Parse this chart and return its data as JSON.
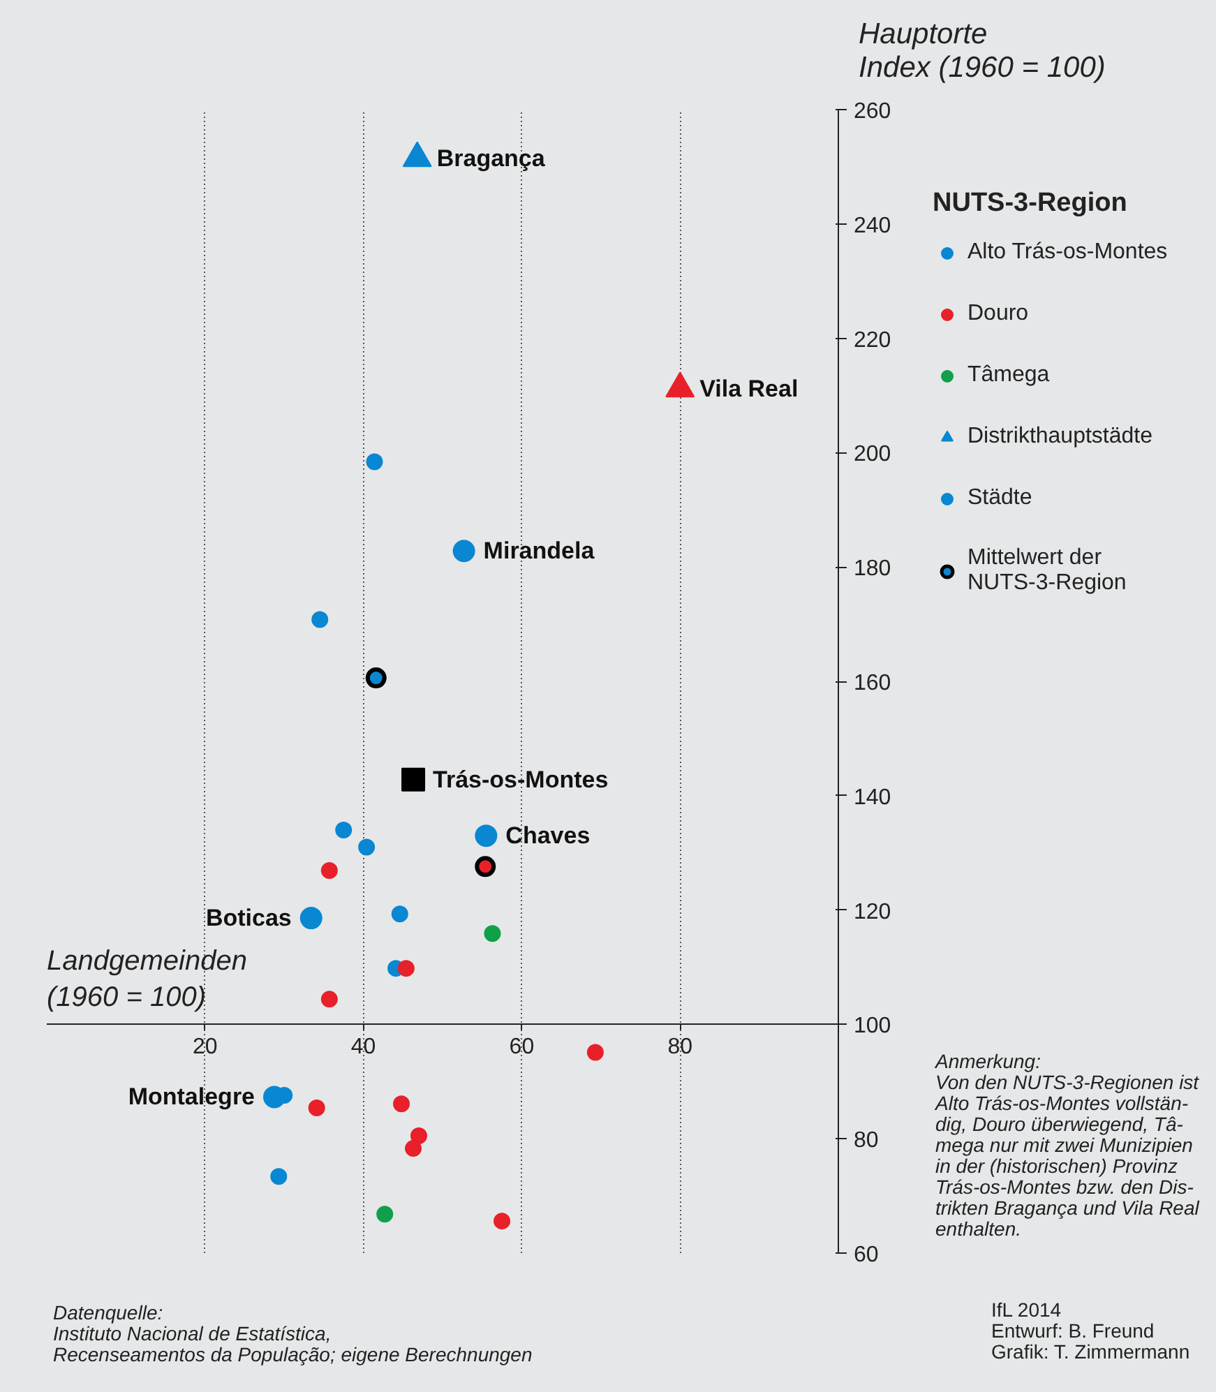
{
  "chart_data": {
    "type": "scatter",
    "xlabel": "Landgemeinden\n(1960 = 100)",
    "ylabel": "Hauptorte\nIndex (1960 = 100)",
    "legend_title": "NUTS-3-Region",
    "xlim": [
      0,
      100
    ],
    "ylim": [
      60,
      260
    ],
    "xticks": [
      20,
      40,
      60,
      80
    ],
    "yticks": [
      60,
      80,
      100,
      120,
      140,
      160,
      180,
      200,
      220,
      240,
      260
    ],
    "grid": "x",
    "legend": "right",
    "marker": "circle",
    "series": [
      {
        "name": "Alto Trás-os-Montes",
        "color": "#0a87d2",
        "x": [
          41.4,
          34.5,
          37.5,
          40.4,
          44.6,
          44.1,
          30.0,
          29.3
        ],
        "values": [
          198.4,
          170.8,
          134.0,
          131.0,
          119.3,
          109.8,
          87.6,
          73.4
        ]
      },
      {
        "name": "Douro",
        "color": "#e8202a",
        "x": [
          35.7,
          45.4,
          35.7,
          69.3,
          34.1,
          44.8,
          47.0,
          46.3,
          57.5
        ],
        "values": [
          126.9,
          109.8,
          104.4,
          95.1,
          85.4,
          86.1,
          80.5,
          78.3,
          65.6
        ]
      },
      {
        "name": "Tâmega",
        "color": "#10a04a",
        "x": [
          56.3,
          42.7
        ],
        "values": [
          115.9,
          66.8
        ]
      },
      {
        "name": "Distrikthauptstädte",
        "marker": "triangle",
        "colors": [
          "#0a87d2",
          "#e8202a"
        ],
        "x": [
          46.8,
          80.0
        ],
        "values": [
          251.5,
          211.2
        ]
      },
      {
        "name": "Städte",
        "colors": [
          "#0a87d2",
          "#0a87d2",
          "#0a87d2",
          "#0a87d2"
        ],
        "x": [
          52.7,
          55.5,
          33.4,
          28.75
        ],
        "values": [
          182.8,
          133.0,
          118.6,
          87.3
        ]
      },
      {
        "name": "Mittelwert der\nNUTS-3-Region",
        "color": "#000000",
        "colors": [
          "#0a87d2",
          "#e8202a"
        ],
        "x": [
          41.6,
          55.4
        ],
        "values": [
          160.6,
          127.6
        ]
      },
      {
        "marker": "square",
        "color": "#000000",
        "x": [
          46.3
        ],
        "values": [
          142.8
        ]
      }
    ],
    "annotations": [
      {
        "text": "Bragança",
        "x": 46.8,
        "y": 251.5
      },
      {
        "text": "Vila Real",
        "x": 80.0,
        "y": 211.2
      },
      {
        "text": "Mirandela",
        "x": 52.7,
        "y": 182.8
      },
      {
        "text": "Trás-os-Montes",
        "x": 46.3,
        "y": 142.8
      },
      {
        "text": "Chaves",
        "x": 55.5,
        "y": 133.0
      },
      {
        "text": "Boticas",
        "x": 33.4,
        "y": 118.6
      },
      {
        "text": "Montalegre",
        "x": 28.75,
        "y": 87.3
      },
      "Anmerkung:\nVon den NUTS-3-Regionen ist\nAlto Trás-os-Montes vollstän-\ndig, Douro überwiegend, Tâ-\nmega nur mit zwei Munizipien\nin der (historischen) Provinz\nTrás-os-Montes bzw. den Dis-\ntrikten Bragança und Vila Real\nenthalten.",
      "Datenquelle:\nInstituto Nacional de Estatística,\nRecenseamentos da População; eigene Berechnungen",
      "IfL 2014\nEntwurf: B. Freund\nGrafik: T. Zimmermann"
    ]
  }
}
